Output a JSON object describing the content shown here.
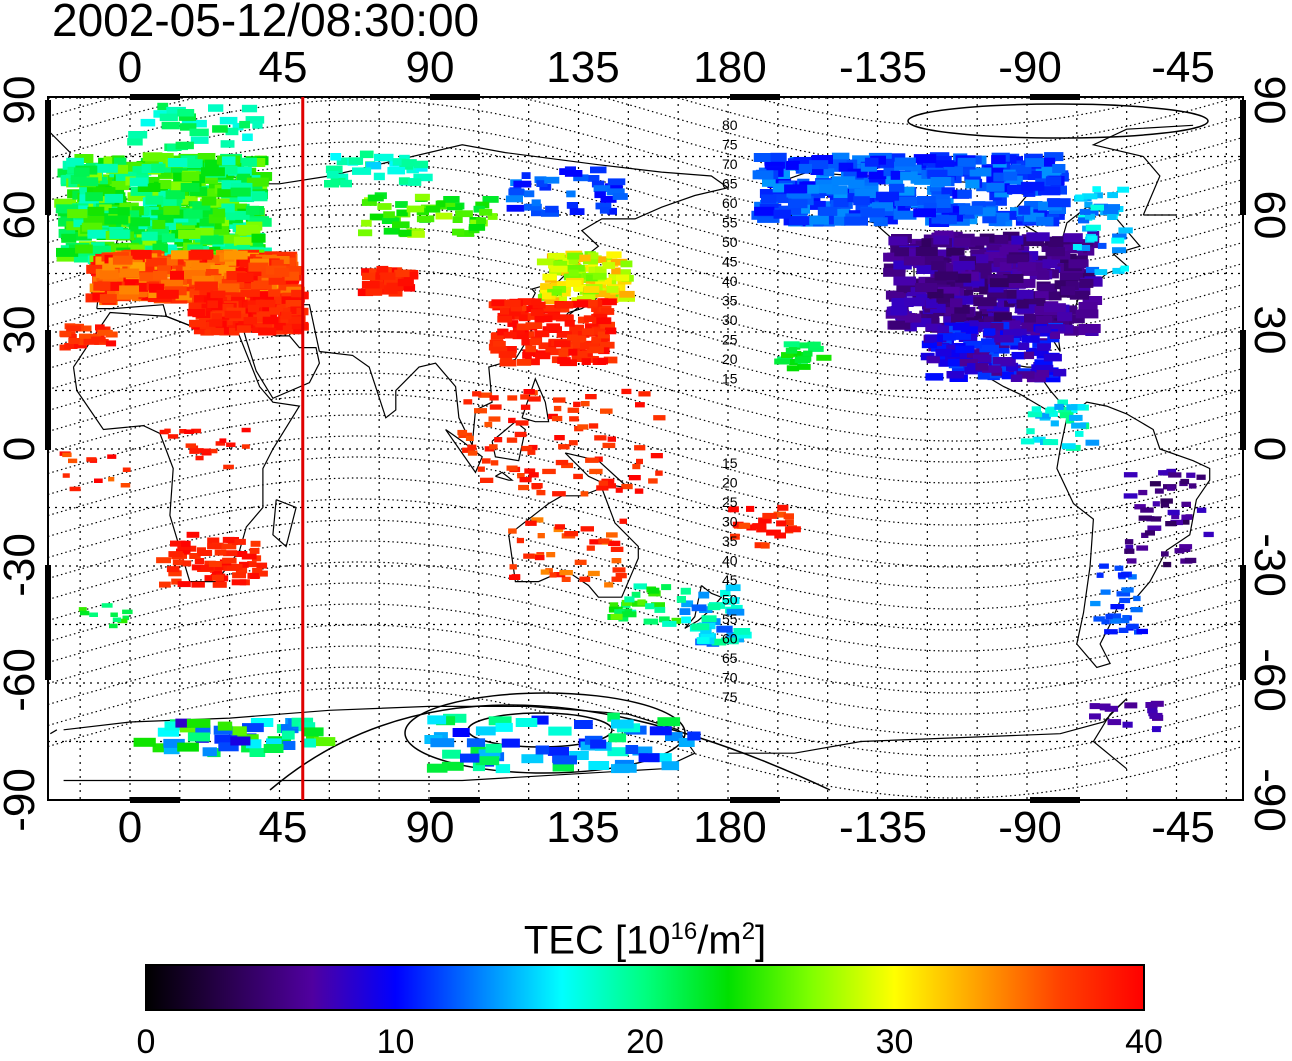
{
  "timestamp": "2002-05-12/08:30:00",
  "map": {
    "top_lon_labels": [
      "0",
      "45",
      "90",
      "135",
      "180",
      "-135",
      "-90",
      "-45"
    ],
    "bottom_lon_labels": [
      "0",
      "45",
      "90",
      "135",
      "180",
      "-135",
      "-90",
      "-45"
    ],
    "left_lat_labels": [
      "90",
      "60",
      "30",
      "0",
      "-30",
      "-60",
      "-90"
    ],
    "right_lat_labels": [
      "90",
      "60",
      "30",
      "0",
      "-30",
      "-60",
      "-90"
    ],
    "north_contour_labels": [
      "80",
      "75",
      "70",
      "65",
      "60",
      "55",
      "50",
      "45",
      "40",
      "35",
      "30",
      "25",
      "20",
      "15"
    ],
    "south_contour_labels": [
      "15",
      "20",
      "25",
      "30",
      "35",
      "40",
      "45",
      "50",
      "55",
      "60",
      "65",
      "70",
      "75"
    ],
    "marker_longitude": 52,
    "marker_color": "#e00000"
  },
  "colorbar": {
    "title_prefix": "TEC  [10",
    "title_exp1": "16",
    "title_mid": "/m",
    "title_exp2": "2",
    "title_suffix": "]",
    "ticks": [
      "0",
      "10",
      "20",
      "30",
      "40"
    ],
    "min": 0,
    "max": 40,
    "colors": [
      "#000000",
      "#2a0050",
      "#5000a0",
      "#0000ff",
      "#0080ff",
      "#00ffff",
      "#00ff80",
      "#00e000",
      "#80ff00",
      "#ffff00",
      "#ffa000",
      "#ff4000",
      "#ff0000"
    ]
  }
}
